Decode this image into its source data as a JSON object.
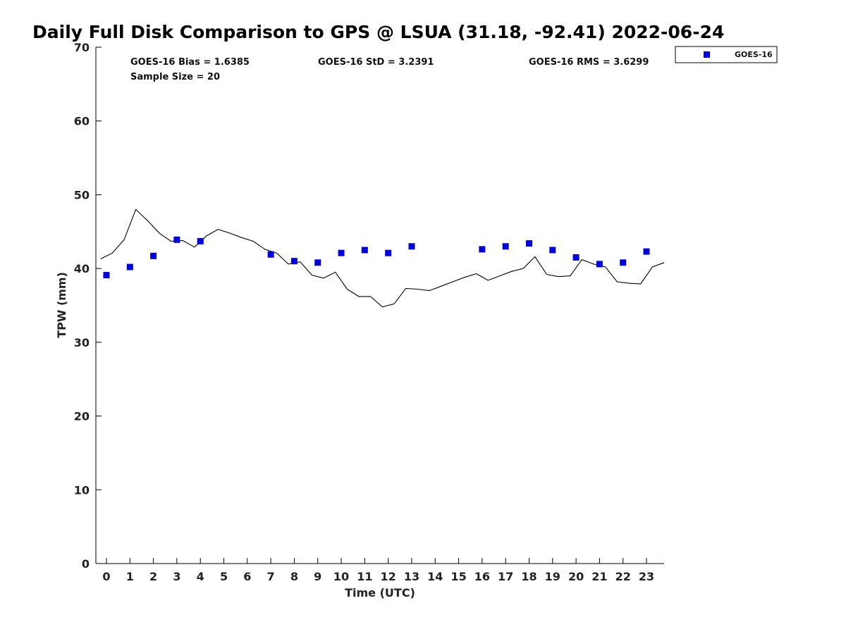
{
  "chart_data": {
    "type": "scatter",
    "title": "Daily Full Disk Comparison to GPS @ LSUA (31.18, -92.41) 2022-06-24",
    "xlabel": "Time (UTC)",
    "ylabel": "TPW (mm)",
    "xlim": [
      -0.45,
      23.75
    ],
    "ylim": [
      0,
      70
    ],
    "x_ticks": [
      0,
      1,
      2,
      3,
      4,
      5,
      6,
      7,
      8,
      9,
      10,
      11,
      12,
      13,
      14,
      15,
      16,
      17,
      18,
      19,
      20,
      21,
      22,
      23
    ],
    "y_ticks": [
      0,
      10,
      20,
      30,
      40,
      50,
      60,
      70
    ],
    "grid": false,
    "legend_position": "outside-top-right",
    "stats": {
      "bias": "GOES-16 Bias = 1.6385",
      "std": "GOES-16 StD = 3.2391",
      "rms": "GOES-16 RMS = 3.6299",
      "sample": "Sample Size = 20"
    },
    "series": [
      {
        "name": "GOES-16",
        "kind": "marker",
        "color": "#0000dd",
        "x": [
          0,
          1,
          2,
          3,
          4,
          7,
          8,
          9,
          10,
          11,
          12,
          13,
          16,
          17,
          18,
          19,
          20,
          21,
          22,
          23
        ],
        "y": [
          39.1,
          40.2,
          41.7,
          43.9,
          43.7,
          41.9,
          41.0,
          40.8,
          42.1,
          42.5,
          42.1,
          43.0,
          42.6,
          43.0,
          43.4,
          42.5,
          41.5,
          40.6,
          40.8,
          42.3
        ]
      },
      {
        "kind": "line",
        "color": "#000000",
        "x": [
          -0.25,
          0.25,
          0.75,
          1.25,
          1.75,
          2.25,
          2.75,
          3.25,
          3.75,
          4.25,
          4.75,
          5.25,
          5.75,
          6.25,
          6.75,
          7.25,
          7.75,
          8.25,
          8.75,
          9.25,
          9.75,
          10.25,
          10.75,
          11.25,
          11.75,
          12.25,
          12.75,
          13.25,
          13.75,
          14.25,
          14.75,
          15.25,
          15.75,
          16.25,
          16.75,
          17.25,
          17.75,
          18.25,
          18.75,
          19.25,
          19.75,
          20.25,
          20.75,
          21.25,
          21.75,
          22.25,
          22.75,
          23.25,
          23.75
        ],
        "y": [
          41.3,
          42.1,
          43.9,
          48.0,
          46.5,
          44.8,
          43.7,
          43.8,
          42.9,
          44.4,
          45.3,
          44.8,
          44.2,
          43.7,
          42.6,
          42.1,
          40.6,
          40.9,
          39.1,
          38.7,
          39.5,
          37.2,
          36.2,
          36.2,
          34.8,
          35.2,
          37.3,
          37.2,
          37.0,
          37.6,
          38.2,
          38.8,
          39.3,
          38.4,
          39.0,
          39.6,
          40.0,
          41.6,
          39.2,
          38.9,
          39.0,
          41.2,
          40.6,
          40.2,
          38.2,
          38.0,
          37.9,
          40.2,
          40.8
        ]
      }
    ]
  }
}
